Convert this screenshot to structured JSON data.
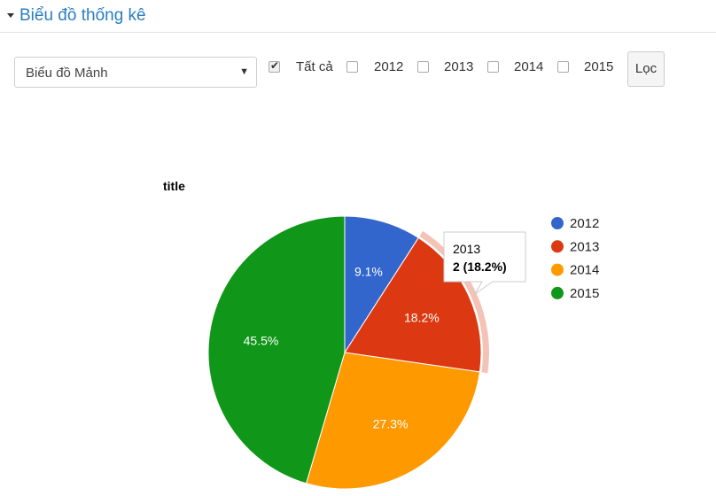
{
  "section": {
    "title": "Biểu đồ thống kê"
  },
  "filter": {
    "chart_type_selected": "Biểu đồ Mảnh",
    "all_label": "Tất cả",
    "years": [
      "2012",
      "2013",
      "2014",
      "2015"
    ],
    "checked": [
      "all"
    ],
    "button_label": "Lọc"
  },
  "chart_data": {
    "type": "pie",
    "title": "title",
    "categories": [
      "2012",
      "2013",
      "2014",
      "2015"
    ],
    "values": [
      1,
      2,
      3,
      5
    ],
    "percent_labels": [
      "9.1%",
      "18.2%",
      "27.3%",
      "45.5%"
    ],
    "colors": [
      "#3366cc",
      "#dc3912",
      "#ff9900",
      "#109618"
    ],
    "legend_position": "right",
    "highlighted": "2013",
    "tooltip": {
      "category": "2013",
      "value_text": "2 (18.2%)"
    }
  }
}
